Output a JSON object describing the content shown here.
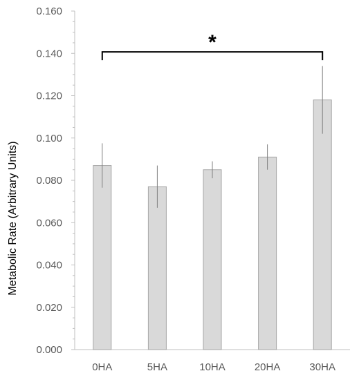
{
  "chart_data": {
    "type": "bar",
    "title": "",
    "xlabel": "",
    "ylabel": "Metabolic Rate (Arbitrary Units)",
    "ylim": [
      0,
      0.16
    ],
    "yticks": [
      "0.000",
      "0.020",
      "0.040",
      "0.060",
      "0.080",
      "0.100",
      "0.120",
      "0.140",
      "0.160"
    ],
    "categories": [
      "0HA",
      "5HA",
      "10HA",
      "20HA",
      "30HA"
    ],
    "values": [
      0.087,
      0.077,
      0.085,
      0.091,
      0.118
    ],
    "error": [
      0.0105,
      0.01,
      0.004,
      0.006,
      0.016
    ],
    "grid": false,
    "legend": "none",
    "colors": {
      "bar_fill": "#d9d9d9",
      "bar_edge": "#a6a6a6",
      "axis": "#bfbfbf",
      "error_bar": "#7f7f7f"
    },
    "significance": {
      "label": "*",
      "from": "0HA",
      "to": "30HA",
      "y": 0.142
    }
  }
}
